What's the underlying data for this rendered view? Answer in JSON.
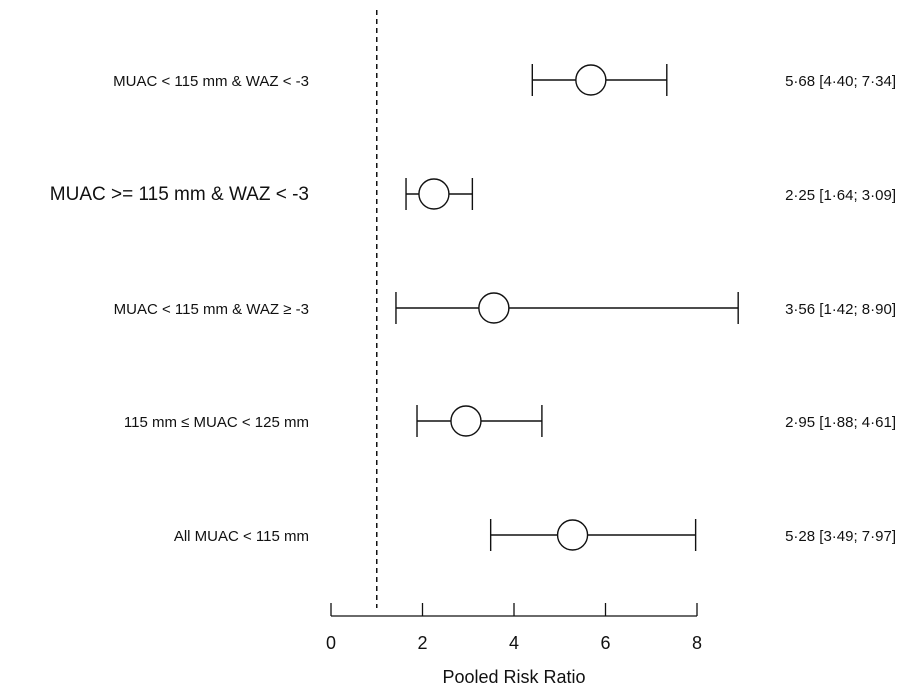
{
  "chart_data": {
    "type": "forest",
    "xlabel": "Pooled Risk Ratio",
    "xlim": [
      0,
      8
    ],
    "xticks": [
      0,
      2,
      4,
      6,
      8
    ],
    "reference_line": 1,
    "rows": [
      {
        "label": "MUAC < 115 mm & WAZ < -3",
        "estimate": 5.68,
        "lower": 4.4,
        "upper": 7.34,
        "text": "5·68 [4·40; 7·34]"
      },
      {
        "label": "MUAC >= 115 mm & WAZ < -3",
        "estimate": 2.25,
        "lower": 1.64,
        "upper": 3.09,
        "text": "2·25 [1·64; 3·09]"
      },
      {
        "label": "MUAC < 115 mm & WAZ ≥ -3",
        "estimate": 3.56,
        "lower": 1.42,
        "upper": 8.9,
        "text": "3·56 [1·42; 8·90]"
      },
      {
        "label": "115 mm ≤ MUAC < 125 mm",
        "estimate": 2.95,
        "lower": 1.88,
        "upper": 4.61,
        "text": "2·95 [1·88; 4·61]"
      },
      {
        "label": "All MUAC < 115 mm",
        "estimate": 5.28,
        "lower": 3.49,
        "upper": 7.97,
        "text": "5·28 [3·49; 7·97]"
      }
    ]
  }
}
